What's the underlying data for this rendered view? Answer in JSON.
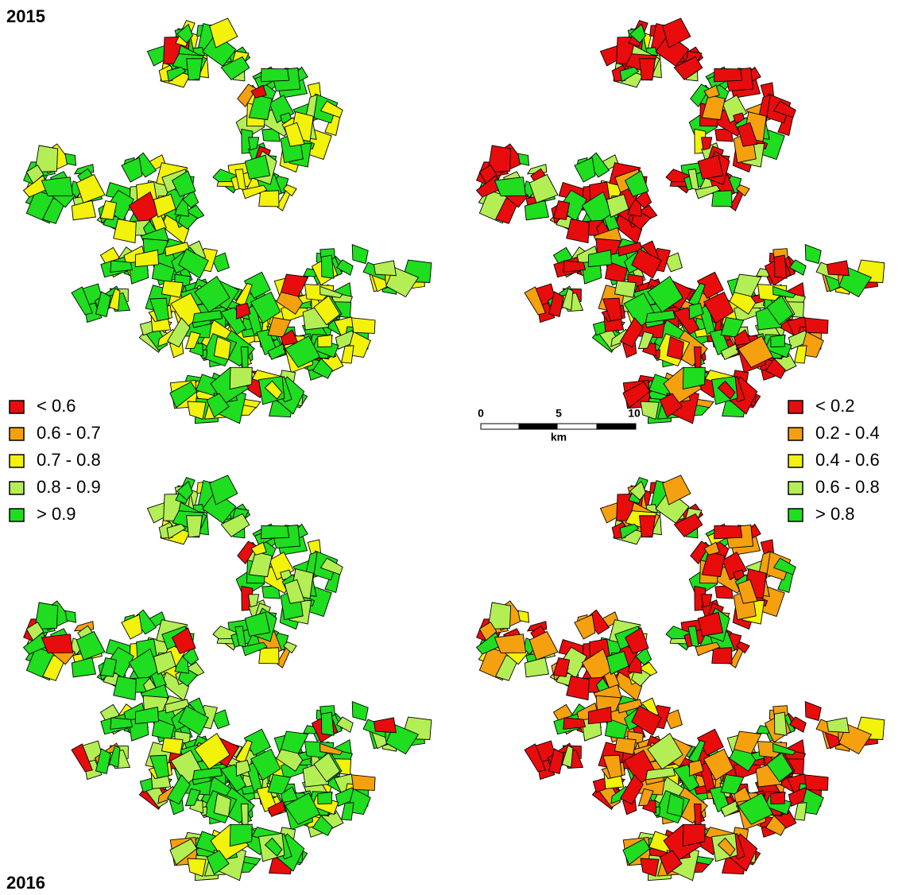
{
  "years": [
    "2015",
    "2016"
  ],
  "legends": [
    {
      "items": [
        {
          "label": "< 0.6",
          "color": "#e80c0c"
        },
        {
          "label": "0.6 - 0.7",
          "color": "#f5a00f"
        },
        {
          "label": "0.7 - 0.8",
          "color": "#f2f20a"
        },
        {
          "label": "0.8 - 0.9",
          "color": "#b4ee55"
        },
        {
          "label": "> 0.9",
          "color": "#1fdd1f"
        }
      ]
    },
    {
      "items": [
        {
          "label": "< 0.2",
          "color": "#e80c0c"
        },
        {
          "label": "0.2 - 0.4",
          "color": "#f5a00f"
        },
        {
          "label": "0.4 - 0.6",
          "color": "#f2f20a"
        },
        {
          "label": "0.6 - 0.8",
          "color": "#b4ee55"
        },
        {
          "label": "> 0.8",
          "color": "#1fdd1f"
        }
      ]
    }
  ],
  "scale_bar": {
    "ticks": [
      0,
      5,
      10
    ],
    "unit": "km"
  }
}
